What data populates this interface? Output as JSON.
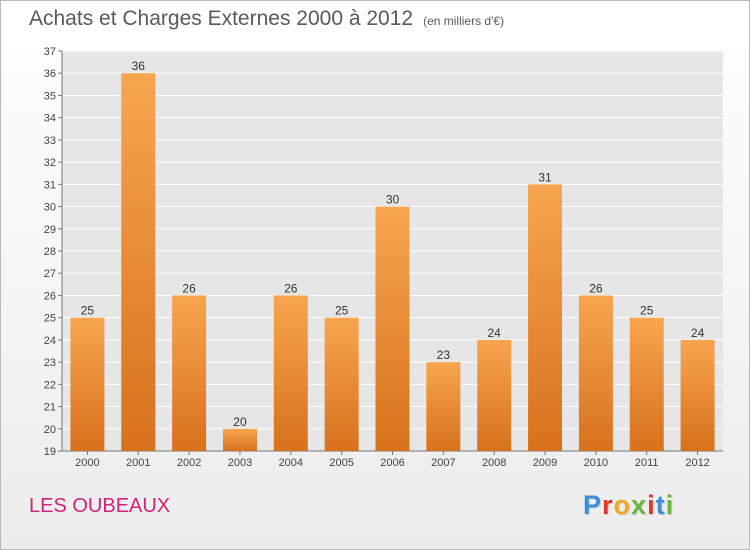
{
  "header": {
    "title": "Achats et Charges Externes 2000 à 2012",
    "subtitle": "(en milliers d'€)"
  },
  "footer": {
    "commune": "LES OUBEAUX",
    "logo_letters": [
      "P",
      "r",
      "o",
      "x",
      "i",
      "t",
      "i"
    ]
  },
  "colors": {
    "bar_top": "#f8a54f",
    "bar_bottom": "#d8711c",
    "commune": "#d2237a",
    "logo": [
      "#3b8fd9",
      "#e2382a",
      "#f3a81e",
      "#6cb33f",
      "#e2382a",
      "#3b8fd9",
      "#6cb33f"
    ]
  },
  "chart_data": {
    "type": "bar",
    "categories": [
      "2000",
      "2001",
      "2002",
      "2003",
      "2004",
      "2005",
      "2006",
      "2007",
      "2008",
      "2009",
      "2010",
      "2011",
      "2012"
    ],
    "values": [
      25,
      36,
      26,
      20,
      26,
      25,
      30,
      23,
      24,
      31,
      26,
      25,
      24
    ],
    "title": "Achats et Charges Externes 2000 à 2012",
    "ylim": [
      19,
      37
    ],
    "yticks": [
      19,
      20,
      21,
      22,
      23,
      24,
      25,
      26,
      27,
      28,
      29,
      30,
      31,
      32,
      33,
      34,
      35,
      36,
      37
    ],
    "grid": true,
    "data_labels": true
  }
}
